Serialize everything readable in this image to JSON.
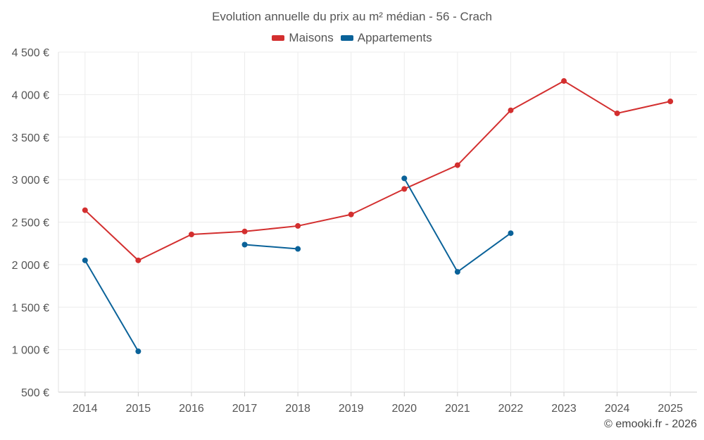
{
  "chart_data": {
    "type": "line",
    "title": "Evolution annuelle du prix au m² médian - 56 - Crach",
    "x": [
      "2014",
      "2015",
      "2016",
      "2017",
      "2018",
      "2019",
      "2020",
      "2021",
      "2022",
      "2023",
      "2024",
      "2025"
    ],
    "series": [
      {
        "name": "Maisons",
        "color": "#d32f2f",
        "values": [
          2640,
          2050,
          2355,
          2390,
          2455,
          2590,
          2890,
          3170,
          3815,
          4160,
          3780,
          3920
        ]
      },
      {
        "name": "Appartements",
        "color": "#0a6299",
        "values": [
          2050,
          980,
          null,
          2235,
          2185,
          null,
          3015,
          1915,
          2370,
          null,
          null,
          null
        ]
      }
    ],
    "ylim": [
      500,
      4500
    ],
    "yticks": [
      500,
      1000,
      1500,
      2000,
      2500,
      3000,
      3500,
      4000,
      4500
    ],
    "ytick_labels": [
      "500 €",
      "1 000 €",
      "1 500 €",
      "2 000 €",
      "2 500 €",
      "3 000 €",
      "3 500 €",
      "4 000 €",
      "4 500 €"
    ],
    "xlabel": "",
    "ylabel": "",
    "grid": true,
    "legend_position": "top-center"
  },
  "copyright": "© emooki.fr - 2026"
}
